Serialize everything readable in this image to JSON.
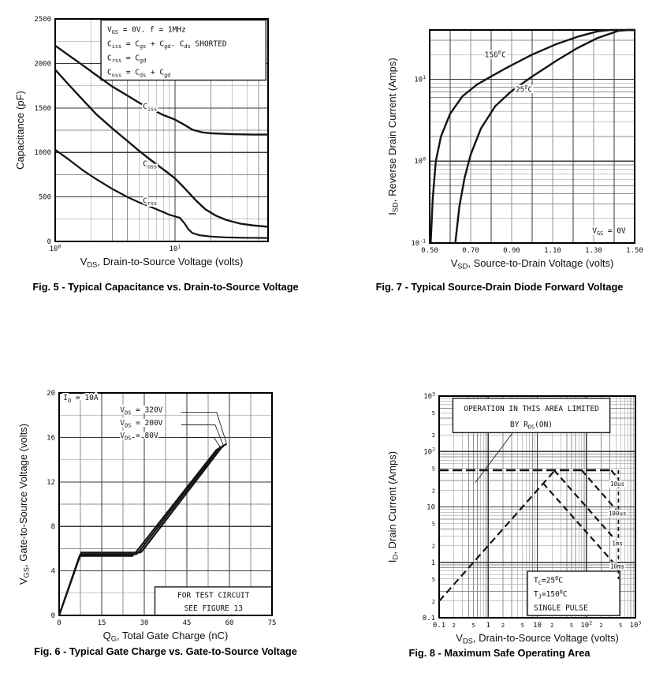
{
  "page": {
    "background": "#ffffff",
    "ink_color": "#141414"
  },
  "chart_data": [
    {
      "id": "fig5",
      "type": "line",
      "caption": "Fig. 5 - Typical Capacitance vs. Drain-to-Source Voltage",
      "xlabel": "V_{DS}, Drain-to-Source Voltage (volts)",
      "ylabel": "Capacitance (pF)",
      "x": {
        "scale": "log",
        "min": 1,
        "max": 60
      },
      "y": {
        "scale": "linear",
        "min": 0,
        "max": 2500,
        "minorStep": 250,
        "majorStep": 500
      },
      "xticks": [
        {
          "v": 1,
          "label": "10^{0}"
        },
        {
          "v": 10,
          "label": "10^{1}"
        }
      ],
      "yticks": [
        {
          "v": 0,
          "label": "0"
        },
        {
          "v": 500,
          "label": "500"
        },
        {
          "v": 1000,
          "label": "1000"
        },
        {
          "v": 1500,
          "label": "1500"
        },
        {
          "v": 2000,
          "label": "2000"
        },
        {
          "v": 2500,
          "label": "2500"
        }
      ],
      "series": [
        {
          "name": "Ciss",
          "points": [
            [
              1,
              2200
            ],
            [
              1.3,
              2090
            ],
            [
              1.7,
              1980
            ],
            [
              2.2,
              1870
            ],
            [
              3,
              1740
            ],
            [
              4,
              1640
            ],
            [
              5,
              1560
            ],
            [
              6.5,
              1480
            ],
            [
              8,
              1420
            ],
            [
              10,
              1370
            ],
            [
              12,
              1310
            ],
            [
              14,
              1255
            ],
            [
              17,
              1225
            ],
            [
              20,
              1215
            ],
            [
              30,
              1205
            ],
            [
              45,
              1200
            ],
            [
              60,
              1200
            ]
          ],
          "width": 2.4
        },
        {
          "name": "Coss",
          "points": [
            [
              1,
              1930
            ],
            [
              1.3,
              1760
            ],
            [
              1.7,
              1590
            ],
            [
              2.2,
              1430
            ],
            [
              3,
              1270
            ],
            [
              4,
              1130
            ],
            [
              5,
              1020
            ],
            [
              6.5,
              900
            ],
            [
              8,
              810
            ],
            [
              10,
              710
            ],
            [
              12,
              600
            ],
            [
              15,
              460
            ],
            [
              18,
              360
            ],
            [
              22,
              290
            ],
            [
              27,
              240
            ],
            [
              35,
              200
            ],
            [
              45,
              180
            ],
            [
              60,
              165
            ]
          ],
          "width": 2.4
        },
        {
          "name": "Crss",
          "points": [
            [
              1,
              1030
            ],
            [
              1.3,
              920
            ],
            [
              1.7,
              800
            ],
            [
              2.2,
              700
            ],
            [
              3,
              590
            ],
            [
              4,
              500
            ],
            [
              5,
              440
            ],
            [
              6.5,
              380
            ],
            [
              8,
              330
            ],
            [
              9,
              300
            ],
            [
              11,
              265
            ],
            [
              12,
              205
            ],
            [
              13,
              135
            ],
            [
              14,
              95
            ],
            [
              16,
              70
            ],
            [
              20,
              55
            ],
            [
              26,
              46
            ],
            [
              35,
              42
            ],
            [
              60,
              38
            ]
          ],
          "width": 2.2
        }
      ],
      "labels": [
        {
          "x": 5.4,
          "y": 1490,
          "text": "C_{iss}",
          "anchor": "start"
        },
        {
          "x": 5.4,
          "y": 845,
          "text": "C_{oss}",
          "anchor": "start"
        },
        {
          "x": 5.4,
          "y": 430,
          "text": "C_{rss}",
          "anchor": "start"
        }
      ],
      "boxes": [
        {
          "fx": 0.215,
          "fy": 0.005,
          "fw": 0.775,
          "fh": 0.27,
          "border": true,
          "align": "left",
          "lines": [
            "V_{GS} = 0V.  f = 1MHz",
            "C_{iss} = C_{gs} + C_{gd}.  C_{ds} SHORTED",
            "C_{rss} = C_{gd}",
            "C_{oss} = C_{ds} + C_{gd}"
          ]
        }
      ]
    },
    {
      "id": "fig7",
      "type": "line",
      "caption": "Fig. 7 - Typical Source-Drain Diode Forward Voltage",
      "xlabel": "V_{SD}, Source-to-Drain Voltage (volts)",
      "ylabel": "I_{SD}, Reverse Drain Current (Amps)",
      "x": {
        "scale": "linear",
        "min": 0.5,
        "max": 1.5,
        "minorStep": 0.1,
        "majorStep": 0.2
      },
      "y": {
        "scale": "log",
        "min": 0.1,
        "max": 40
      },
      "xticks": [
        {
          "v": 0.5,
          "label": "0.50"
        },
        {
          "v": 0.7,
          "label": "0.70"
        },
        {
          "v": 0.9,
          "label": "0.90"
        },
        {
          "v": 1.1,
          "label": "1.10"
        },
        {
          "v": 1.3,
          "label": "1.30"
        },
        {
          "v": 1.5,
          "label": "1.50"
        }
      ],
      "yticks": [
        {
          "v": 0.1,
          "label": "10^{-1}"
        },
        {
          "v": 1,
          "label": "10^{0}"
        },
        {
          "v": 10,
          "label": "10^{1}"
        }
      ],
      "series": [
        {
          "name": "150C",
          "points": [
            [
              0.505,
              0.1
            ],
            [
              0.515,
              0.35
            ],
            [
              0.53,
              1.0
            ],
            [
              0.555,
              2.0
            ],
            [
              0.6,
              3.8
            ],
            [
              0.66,
              6.2
            ],
            [
              0.73,
              8.6
            ],
            [
              0.79,
              10.5
            ],
            [
              0.88,
              14
            ],
            [
              1.0,
              20
            ],
            [
              1.12,
              27
            ],
            [
              1.22,
              33
            ],
            [
              1.32,
              38.5
            ],
            [
              1.38,
              40
            ],
            [
              1.5,
              40
            ]
          ],
          "width": 2.4
        },
        {
          "name": "25C",
          "points": [
            [
              0.625,
              0.1
            ],
            [
              0.645,
              0.28
            ],
            [
              0.67,
              0.62
            ],
            [
              0.7,
              1.2
            ],
            [
              0.75,
              2.5
            ],
            [
              0.82,
              4.7
            ],
            [
              0.9,
              7.2
            ],
            [
              1.0,
              10.8
            ],
            [
              1.12,
              17
            ],
            [
              1.22,
              24
            ],
            [
              1.32,
              32
            ],
            [
              1.42,
              39
            ],
            [
              1.47,
              40
            ],
            [
              1.5,
              40
            ]
          ],
          "width": 2.4
        }
      ],
      "labels": [
        {
          "x": 0.82,
          "y": 18.5,
          "text": "150^{0}C",
          "anchor": "middle"
        },
        {
          "x": 0.96,
          "y": 7.0,
          "text": "25^{0}C",
          "anchor": "middle"
        },
        {
          "x": 1.375,
          "y": 0.132,
          "text": "V_{GS} = 0V",
          "anchor": "middle"
        }
      ]
    },
    {
      "id": "fig6",
      "type": "line",
      "caption": "Fig. 6 - Typical Gate Charge vs. Gate-to-Source Voltage",
      "xlabel": "Q_{G}, Total Gate Charge (nC)",
      "ylabel": "V_{GS}, Gate-to-Source Voltage (volts)",
      "x": {
        "scale": "linear",
        "min": 0,
        "max": 75,
        "minorStep": 7.5,
        "majorStep": 15
      },
      "y": {
        "scale": "linear",
        "min": 0,
        "max": 20,
        "minorStep": 2,
        "majorStep": 4
      },
      "xticks": [
        {
          "v": 0,
          "label": "0"
        },
        {
          "v": 15,
          "label": "15"
        },
        {
          "v": 30,
          "label": "30"
        },
        {
          "v": 45,
          "label": "45"
        },
        {
          "v": 60,
          "label": "60"
        },
        {
          "v": 75,
          "label": "75"
        }
      ],
      "yticks": [
        {
          "v": 0,
          "label": "0"
        },
        {
          "v": 4,
          "label": "4"
        },
        {
          "v": 8,
          "label": "8"
        },
        {
          "v": 12,
          "label": "12"
        },
        {
          "v": 16,
          "label": "16"
        },
        {
          "v": 20,
          "label": "20"
        }
      ],
      "series": [
        {
          "name": "VDS_80V",
          "points": [
            [
              0,
              0
            ],
            [
              7.2,
              5.35
            ],
            [
              25.8,
              5.35
            ],
            [
              26.8,
              5.6
            ],
            [
              55.5,
              14.9
            ],
            [
              57,
              15.05
            ]
          ],
          "width": 2.2
        },
        {
          "name": "VDS_200V",
          "points": [
            [
              0,
              0
            ],
            [
              7.5,
              5.5
            ],
            [
              27.2,
              5.5
            ],
            [
              28.2,
              5.75
            ],
            [
              56.6,
              15.1
            ],
            [
              58,
              15.2
            ]
          ],
          "width": 2.2
        },
        {
          "name": "VDS_320V",
          "points": [
            [
              0,
              0
            ],
            [
              7.8,
              5.65
            ],
            [
              28.6,
              5.65
            ],
            [
              29.6,
              5.9
            ],
            [
              57.7,
              15.25
            ],
            [
              59,
              15.4
            ]
          ],
          "width": 2.2
        }
      ],
      "labels": [
        {
          "x": 1.5,
          "y": 19.35,
          "text": "I_{D} = 10A",
          "anchor": "start"
        },
        {
          "x": 21.5,
          "y": 18.25,
          "text": "V_{DS} = 320V",
          "anchor": "start"
        },
        {
          "x": 21.5,
          "y": 17.1,
          "text": "V_{DS} = 200V",
          "anchor": "start"
        },
        {
          "x": 21.5,
          "y": 15.95,
          "text": "V_{DS} =  80V",
          "anchor": "start"
        }
      ],
      "boxes": [
        {
          "fx": 0.45,
          "fy": 0.872,
          "fw": 0.55,
          "fh": 0.128,
          "border": true,
          "align": "center",
          "lines": [
            "FOR TEST CIRCUIT",
            "SEE FIGURE 13"
          ]
        }
      ],
      "leaders": [
        {
          "pts": [
            [
              0.573,
              0.0875
            ],
            [
              0.74,
              0.0875
            ],
            [
              0.787,
              0.229
            ]
          ]
        },
        {
          "pts": [
            [
              0.573,
              0.1435
            ],
            [
              0.733,
              0.1435
            ],
            [
              0.773,
              0.2395
            ]
          ]
        },
        {
          "pts": [
            [
              0.573,
              0.2005
            ],
            [
              0.727,
              0.2005
            ],
            [
              0.76,
              0.247
            ]
          ]
        }
      ]
    },
    {
      "id": "fig8",
      "type": "line",
      "caption": "Fig. 8 - Maximum Safe Operating Area",
      "xlabel": "V_{DS}, Drain-to-Source Voltage (volts)",
      "ylabel": "I_{D}, Drain Current (Amps)",
      "x": {
        "scale": "log",
        "min": 0.1,
        "max": 1000
      },
      "y": {
        "scale": "log",
        "min": 0.1,
        "max": 1000
      },
      "xticks": [
        {
          "v": 0.1,
          "label": "0.1"
        },
        {
          "v": 0.2,
          "label": "2",
          "minor": true
        },
        {
          "v": 0.5,
          "label": "5",
          "minor": true
        },
        {
          "v": 1,
          "label": "1"
        },
        {
          "v": 2,
          "label": "2",
          "minor": true
        },
        {
          "v": 5,
          "label": "5",
          "minor": true
        },
        {
          "v": 10,
          "label": "10"
        },
        {
          "v": 20,
          "label": "2",
          "minor": true
        },
        {
          "v": 50,
          "label": "5",
          "minor": true
        },
        {
          "v": 100,
          "label": "10^{2}"
        },
        {
          "v": 200,
          "label": "2",
          "minor": true
        },
        {
          "v": 500,
          "label": "5",
          "minor": true
        },
        {
          "v": 1000,
          "label": "10^{3}"
        }
      ],
      "yticks": [
        {
          "v": 0.1,
          "label": "0.1"
        },
        {
          "v": 0.2,
          "label": "2",
          "minor": true
        },
        {
          "v": 0.5,
          "label": "5",
          "minor": true
        },
        {
          "v": 1,
          "label": "1"
        },
        {
          "v": 2,
          "label": "2",
          "minor": true
        },
        {
          "v": 5,
          "label": "5",
          "minor": true
        },
        {
          "v": 10,
          "label": "10"
        },
        {
          "v": 20,
          "label": "2",
          "minor": true
        },
        {
          "v": 50,
          "label": "5",
          "minor": true
        },
        {
          "v": 100,
          "label": "10^{2}"
        },
        {
          "v": 200,
          "label": "2",
          "minor": true
        },
        {
          "v": 500,
          "label": "5",
          "minor": true
        },
        {
          "v": 1000,
          "label": "10^{3}"
        }
      ],
      "series": [
        {
          "name": "rds_on_limit",
          "points": [
            [
              0.1,
              0.2
            ],
            [
              23,
              46
            ]
          ],
          "width": 2.2,
          "dash": "9 5"
        },
        {
          "name": "package_current_limit",
          "points": [
            [
              0.1,
              46
            ],
            [
              320,
              46
            ]
          ],
          "width": 2.6,
          "dash": "12 5"
        },
        {
          "name": "pulse_10us",
          "points": [
            [
              320,
              46
            ],
            [
              450,
              32
            ]
          ],
          "width": 2.2,
          "dash": "8 5"
        },
        {
          "name": "pulse_100us",
          "points": [
            [
              80,
              46
            ],
            [
              450,
              8
            ]
          ],
          "width": 2.2,
          "dash": "8 5"
        },
        {
          "name": "pulse_1ms",
          "points": [
            [
              22,
              46
            ],
            [
              450,
              2.2
            ]
          ],
          "width": 2.2,
          "dash": "8 5"
        },
        {
          "name": "pulse_10ms",
          "points": [
            [
              13,
              27
            ],
            [
              450,
              0.78
            ]
          ],
          "width": 2.2,
          "dash": "8 5"
        },
        {
          "name": "voltage_limit",
          "points": [
            [
              450,
              46
            ],
            [
              450,
              0.5
            ]
          ],
          "width": 1.8,
          "dash": "5 4"
        }
      ],
      "labels": [
        {
          "x": 430,
          "y": 24,
          "text": "10us",
          "anchor": "middle",
          "size": 7.5
        },
        {
          "x": 430,
          "y": 7,
          "text": "100us",
          "anchor": "middle",
          "size": 7.5
        },
        {
          "x": 430,
          "y": 2.0,
          "text": "1ms",
          "anchor": "middle",
          "size": 7.5
        },
        {
          "x": 430,
          "y": 0.78,
          "text": "10ms",
          "anchor": "middle",
          "size": 7.5
        }
      ],
      "boxes": [
        {
          "fx": 0.07,
          "fy": 0.01,
          "fw": 0.8,
          "fh": 0.155,
          "border": true,
          "align": "center",
          "lines": [
            "OPERATION IN THIS AREA LIMITED",
            "BY R_{DS}(ON)"
          ]
        },
        {
          "fx": 0.45,
          "fy": 0.79,
          "fw": 0.47,
          "fh": 0.2,
          "border": true,
          "align": "left",
          "lines": [
            "T_{C}=25^{0}C",
            "T_{J}=150^{0}C",
            "SINGLE PULSE"
          ]
        }
      ],
      "leaders": [
        {
          "pts": [
            [
              0.375,
              0.165
            ],
            [
              0.185,
              0.39
            ]
          ]
        }
      ]
    }
  ]
}
